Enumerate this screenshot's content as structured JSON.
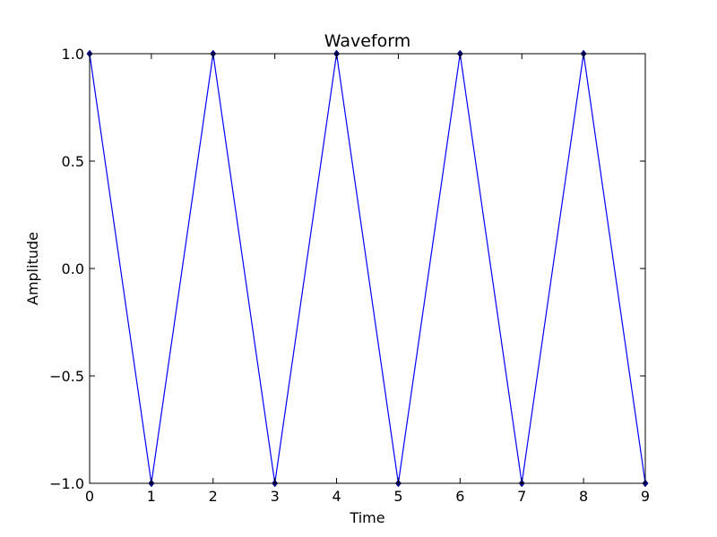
{
  "chart_data": {
    "type": "line",
    "title": "Waveform",
    "xlabel": "Time",
    "ylabel": "Amplitude",
    "xlim": [
      0,
      9
    ],
    "ylim": [
      -1.0,
      1.0
    ],
    "x_ticks": [
      "0",
      "1",
      "2",
      "3",
      "4",
      "5",
      "6",
      "7",
      "8",
      "9"
    ],
    "y_ticks": [
      "1.0",
      "0.5",
      "0.0",
      "−0.5",
      "−1.0"
    ],
    "grid": false,
    "series": [
      {
        "color": "#0000ff",
        "marker_color": "#000080",
        "x": [
          0,
          1,
          2,
          3,
          4,
          5,
          6,
          7,
          8,
          9
        ],
        "y": [
          1,
          -1,
          1,
          -1,
          1,
          -1,
          1,
          -1,
          1,
          -1
        ]
      }
    ]
  }
}
